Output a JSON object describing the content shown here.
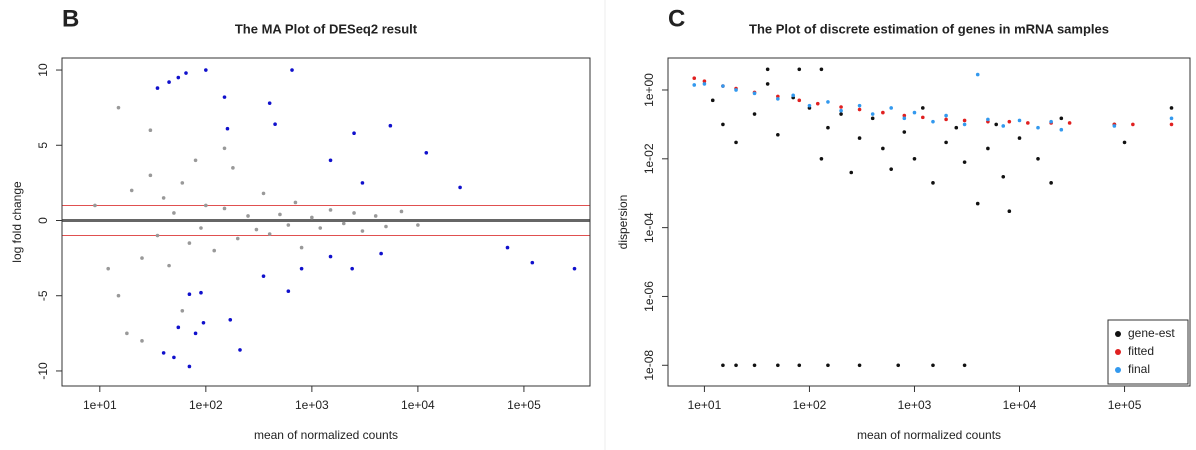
{
  "chart_data": [
    {
      "type": "scatter",
      "panel": "B",
      "title": "The MA Plot of DESeq2 result",
      "xlabel": "mean of normalized counts",
      "ylabel": "log fold change",
      "xlog": true,
      "ylog": false,
      "xlim": [
        4.4,
        420000
      ],
      "ylim": [
        -11,
        10.8
      ],
      "xticks": [
        {
          "value": 10,
          "label": "1e+01"
        },
        {
          "value": 100,
          "label": "1e+02"
        },
        {
          "value": 1000,
          "label": "1e+03"
        },
        {
          "value": 10000,
          "label": "1e+04"
        },
        {
          "value": 100000,
          "label": "1e+05"
        }
      ],
      "yticks": [
        -10,
        -5,
        0,
        5,
        10
      ],
      "hlines": [
        {
          "value": 0,
          "color": "#666666"
        },
        {
          "value": 1,
          "color": "#e05050"
        },
        {
          "value": -1,
          "color": "#e05050"
        }
      ],
      "series": [
        {
          "color": "#999999",
          "x": [
            20,
            25,
            30,
            35,
            40,
            45,
            50,
            60,
            70,
            80,
            90,
            100,
            120,
            150,
            180,
            200,
            250,
            300,
            350,
            400,
            500,
            600,
            700,
            800,
            1000,
            1200,
            1500,
            2000,
            2500,
            3000,
            4000,
            5000,
            7000,
            10000,
            15,
            15,
            12,
            30,
            18,
            25,
            60,
            150,
            9
          ],
          "values": [
            2,
            -2.5,
            3,
            -1,
            1.5,
            -3,
            0.5,
            2.5,
            -1.5,
            4,
            -0.5,
            1,
            -2,
            0.8,
            3.5,
            -1.2,
            0.3,
            -0.6,
            1.8,
            -0.9,
            0.4,
            -0.3,
            1.2,
            -1.8,
            0.2,
            -0.5,
            0.7,
            -0.2,
            0.5,
            -0.7,
            0.3,
            -0.4,
            0.6,
            -0.3,
            7.5,
            -5,
            -3.2,
            6,
            -7.5,
            -8,
            -6,
            4.8,
            1
          ]
        },
        {
          "color": "#1010cc",
          "x": [
            35,
            45,
            55,
            65,
            100,
            150,
            160,
            400,
            450,
            650,
            1500,
            2500,
            5500,
            12000,
            25000,
            3000,
            800,
            1500,
            2400,
            4500,
            70000,
            120000,
            300000,
            40,
            50,
            55,
            70,
            80,
            95,
            170,
            210,
            70,
            90,
            600,
            350
          ],
          "values": [
            8.8,
            9.2,
            9.5,
            9.8,
            10,
            8.2,
            6.1,
            7.8,
            6.4,
            10,
            4,
            5.8,
            6.3,
            4.5,
            2.2,
            2.5,
            -3.2,
            -2.4,
            -3.2,
            -2.2,
            -1.8,
            -2.8,
            -3.2,
            -8.8,
            -9.1,
            -7.1,
            -9.7,
            -7.5,
            -6.8,
            -6.6,
            -8.6,
            -4.9,
            -4.8,
            -4.7,
            -3.7
          ]
        }
      ]
    },
    {
      "type": "scatter",
      "panel": "C",
      "title": "The Plot of discrete estimation of genes in mRNA samples",
      "xlabel": "mean of normalized counts",
      "ylabel": "dispersion",
      "xlog": true,
      "ylog": true,
      "xlim": [
        4.5,
        420000
      ],
      "ylim": [
        2.5e-09,
        8.5
      ],
      "xticks": [
        {
          "value": 10,
          "label": "1e+01"
        },
        {
          "value": 100,
          "label": "1e+02"
        },
        {
          "value": 1000,
          "label": "1e+03"
        },
        {
          "value": 10000,
          "label": "1e+04"
        },
        {
          "value": 100000,
          "label": "1e+05"
        }
      ],
      "yticks": [
        {
          "value": 1,
          "label": "1e+00"
        },
        {
          "value": 0.01,
          "label": "1e-02"
        },
        {
          "value": 0.0001,
          "label": "1e-04"
        },
        {
          "value": 1e-06,
          "label": "1e-06"
        },
        {
          "value": 1e-08,
          "label": "1e-08"
        }
      ],
      "legend": "bottom-right",
      "series": [
        {
          "name": "gene-est",
          "color": "#111111",
          "x": [
            12,
            15,
            20,
            30,
            40,
            50,
            70,
            100,
            130,
            150,
            200,
            250,
            300,
            400,
            500,
            600,
            800,
            1000,
            1200,
            1500,
            2000,
            2500,
            3000,
            4000,
            5000,
            6000,
            7000,
            8000,
            10000,
            15000,
            20000,
            25000,
            80000,
            100000,
            280000,
            40,
            80,
            130,
            15,
            20,
            30,
            50,
            80,
            150,
            300,
            700,
            1500,
            3000
          ],
          "values": [
            0.5,
            0.1,
            0.03,
            0.2,
            1.5,
            0.05,
            0.6,
            0.3,
            0.01,
            0.08,
            0.2,
            0.004,
            0.04,
            0.15,
            0.02,
            0.005,
            0.06,
            0.01,
            0.3,
            0.002,
            0.03,
            0.08,
            0.008,
            0.0005,
            0.02,
            0.1,
            0.003,
            0.0003,
            0.04,
            0.01,
            0.002,
            0.15,
            0.1,
            0.03,
            0.3,
            4,
            4,
            4,
            1e-08,
            1e-08,
            1e-08,
            1e-08,
            1e-08,
            1e-08,
            1e-08,
            1e-08,
            1e-08,
            1e-08
          ]
        },
        {
          "name": "fitted",
          "color": "#e02020",
          "x": [
            8,
            10,
            15,
            20,
            30,
            50,
            80,
            120,
            200,
            300,
            500,
            800,
            1200,
            2000,
            3000,
            5000,
            8000,
            12000,
            20000,
            30000,
            80000,
            120000,
            280000
          ],
          "values": [
            2.2,
            1.8,
            1.3,
            1.1,
            0.85,
            0.65,
            0.5,
            0.4,
            0.32,
            0.27,
            0.22,
            0.18,
            0.16,
            0.14,
            0.13,
            0.12,
            0.12,
            0.11,
            0.11,
            0.11,
            0.1,
            0.1,
            0.1
          ]
        },
        {
          "name": "final",
          "color": "#3399ee",
          "x": [
            8,
            10,
            15,
            20,
            30,
            50,
            70,
            100,
            150,
            200,
            300,
            400,
            600,
            800,
            1000,
            1500,
            2000,
            3000,
            4000,
            5000,
            7000,
            10000,
            15000,
            20000,
            25000,
            80000,
            280000
          ],
          "values": [
            1.4,
            1.5,
            1.3,
            1.0,
            0.8,
            0.55,
            0.7,
            0.35,
            0.45,
            0.25,
            0.35,
            0.2,
            0.3,
            0.15,
            0.22,
            0.12,
            0.18,
            0.1,
            2.8,
            0.14,
            0.09,
            0.13,
            0.08,
            0.12,
            0.07,
            0.09,
            0.15
          ]
        }
      ]
    }
  ]
}
